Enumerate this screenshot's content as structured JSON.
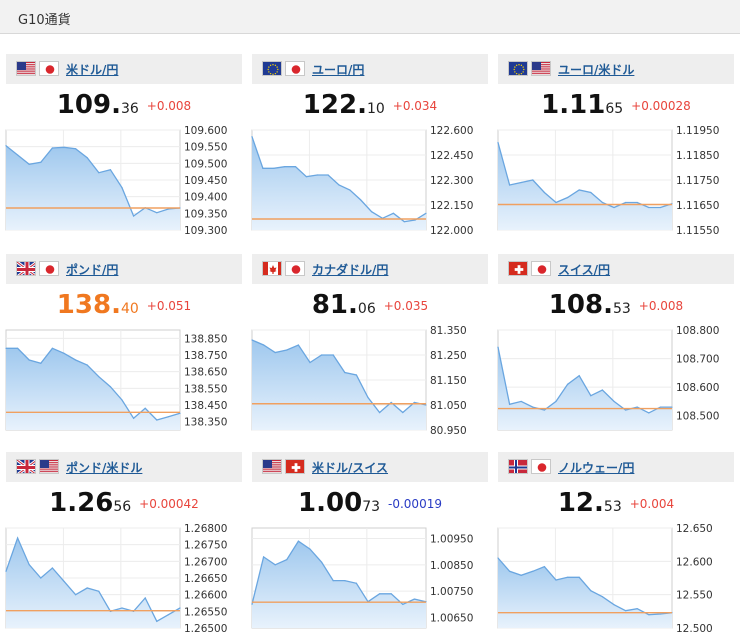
{
  "header": {
    "title": "G10通貨"
  },
  "colors": {
    "up": "#e8453c",
    "down": "#2a3cc4",
    "highlight": "#f07820",
    "baseline": "#f0a060",
    "area_top": "#9fc8ee",
    "area_bottom": "#e8f2fc",
    "line": "#6aa6e0",
    "link": "#1f5a96"
  },
  "cards": [
    {
      "pair": "米ドル/円",
      "flags": [
        "us-flag",
        "jp-flag"
      ],
      "price_main": "109.",
      "price_sub": "36",
      "change": "+0.008",
      "direction": "up",
      "highlight": false,
      "chart_data": {
        "type": "area",
        "ylim": [
          109.3,
          109.6
        ],
        "ticks": [
          "109.600",
          "109.550",
          "109.500",
          "109.450",
          "109.400",
          "109.350",
          "109.300"
        ],
        "baseline": 109.366,
        "values": [
          109.553,
          109.525,
          109.497,
          109.503,
          109.546,
          109.548,
          109.544,
          109.517,
          109.472,
          109.481,
          109.427,
          109.342,
          109.367,
          109.352,
          109.363,
          109.366
        ]
      }
    },
    {
      "pair": "ユーロ/円",
      "flags": [
        "eu-flag",
        "jp-flag"
      ],
      "price_main": "122.",
      "price_sub": "10",
      "change": "+0.034",
      "direction": "up",
      "highlight": false,
      "chart_data": {
        "type": "area",
        "ylim": [
          122.0,
          122.6
        ],
        "ticks": [
          "122.600",
          "122.450",
          "122.300",
          "122.150",
          "122.000"
        ],
        "baseline": 122.066,
        "values": [
          122.56,
          122.37,
          122.37,
          122.38,
          122.38,
          122.32,
          122.33,
          122.33,
          122.27,
          122.24,
          122.18,
          122.11,
          122.07,
          122.1,
          122.05,
          122.06,
          122.1
        ]
      }
    },
    {
      "pair": "ユーロ/米ドル",
      "flags": [
        "eu-flag",
        "us-flag"
      ],
      "price_main": "1.11",
      "price_sub": "65",
      "change": "+0.00028",
      "direction": "up",
      "highlight": false,
      "chart_data": {
        "type": "area",
        "ylim": [
          1.1155,
          1.1195
        ],
        "ticks": [
          "1.11950",
          "1.11850",
          "1.11750",
          "1.11650",
          "1.11550"
        ],
        "baseline": 1.11652,
        "values": [
          1.119,
          1.1173,
          1.1174,
          1.1175,
          1.117,
          1.1166,
          1.1168,
          1.1171,
          1.117,
          1.1166,
          1.1164,
          1.1166,
          1.1166,
          1.1164,
          1.1164,
          1.11655
        ]
      }
    },
    {
      "pair": "ポンド/円",
      "flags": [
        "gb-flag",
        "jp-flag"
      ],
      "price_main": "138.",
      "price_sub": "40",
      "change": "+0.051",
      "direction": "up",
      "highlight": true,
      "chart_data": {
        "type": "area",
        "ylim": [
          138.3,
          138.9
        ],
        "ticks": [
          "138.850",
          "138.750",
          "138.650",
          "138.550",
          "138.450",
          "138.350"
        ],
        "baseline": 138.406,
        "values": [
          138.79,
          138.79,
          138.72,
          138.7,
          138.79,
          138.76,
          138.72,
          138.69,
          138.62,
          138.56,
          138.48,
          138.37,
          138.43,
          138.36,
          138.38,
          138.4
        ]
      }
    },
    {
      "pair": "カナダドル/円",
      "flags": [
        "ca-flag",
        "jp-flag"
      ],
      "price_main": "81.",
      "price_sub": "06",
      "change": "+0.035",
      "direction": "up",
      "highlight": false,
      "chart_data": {
        "type": "area",
        "ylim": [
          80.95,
          81.35
        ],
        "ticks": [
          "81.350",
          "81.250",
          "81.150",
          "81.050",
          "80.950"
        ],
        "baseline": 81.055,
        "values": [
          81.31,
          81.29,
          81.26,
          81.27,
          81.29,
          81.22,
          81.25,
          81.25,
          81.18,
          81.17,
          81.08,
          81.02,
          81.06,
          81.02,
          81.06,
          81.05
        ]
      }
    },
    {
      "pair": "スイス/円",
      "flags": [
        "ch-flag",
        "jp-flag"
      ],
      "price_main": "108.",
      "price_sub": "53",
      "change": "+0.008",
      "direction": "up",
      "highlight": false,
      "chart_data": {
        "type": "area",
        "ylim": [
          108.45,
          108.8
        ],
        "ticks": [
          "108.800",
          "108.700",
          "108.600",
          "108.500"
        ],
        "baseline": 108.525,
        "values": [
          108.74,
          108.54,
          108.55,
          108.53,
          108.52,
          108.55,
          108.61,
          108.64,
          108.57,
          108.59,
          108.55,
          108.52,
          108.53,
          108.51,
          108.53,
          108.53
        ]
      }
    },
    {
      "pair": "ポンド/米ドル",
      "flags": [
        "gb-flag",
        "us-flag"
      ],
      "price_main": "1.26",
      "price_sub": "56",
      "change": "+0.00042",
      "direction": "up",
      "highlight": false,
      "chart_data": {
        "type": "area",
        "ylim": [
          1.265,
          1.268
        ],
        "ticks": [
          "1.26800",
          "1.26750",
          "1.26700",
          "1.26650",
          "1.26600",
          "1.26550",
          "1.26500"
        ],
        "baseline": 1.26552,
        "values": [
          1.2667,
          1.2677,
          1.2669,
          1.2665,
          1.2668,
          1.2664,
          1.266,
          1.2662,
          1.2661,
          1.2655,
          1.2656,
          1.2655,
          1.2659,
          1.2652,
          1.2654,
          1.2656
        ]
      }
    },
    {
      "pair": "米ドル/スイス",
      "flags": [
        "us-flag",
        "ch-flag"
      ],
      "price_main": "1.00",
      "price_sub": "73",
      "change": "-0.00019",
      "direction": "down",
      "highlight": false,
      "chart_data": {
        "type": "area",
        "ylim": [
          1.0061,
          1.0099
        ],
        "ticks": [
          "1.00950",
          "1.00850",
          "1.00750",
          "1.00650"
        ],
        "baseline": 1.00708,
        "values": [
          1.007,
          1.0088,
          1.0085,
          1.0087,
          1.0094,
          1.0091,
          1.0086,
          1.0079,
          1.0079,
          1.0078,
          1.0071,
          1.0074,
          1.0074,
          1.007,
          1.0072,
          1.0071
        ]
      }
    },
    {
      "pair": "ノルウェー/円",
      "flags": [
        "no-flag",
        "jp-flag"
      ],
      "price_main": "12.",
      "price_sub": "53",
      "change": "+0.004",
      "direction": "up",
      "highlight": false,
      "chart_data": {
        "type": "area",
        "ylim": [
          12.5,
          12.65
        ],
        "ticks": [
          "12.650",
          "12.600",
          "12.550",
          "12.500"
        ],
        "baseline": 12.523,
        "values": [
          12.605,
          12.585,
          12.579,
          12.585,
          12.592,
          12.572,
          12.576,
          12.576,
          12.556,
          12.547,
          12.535,
          12.526,
          12.529,
          12.52,
          12.521,
          12.523
        ]
      }
    }
  ]
}
